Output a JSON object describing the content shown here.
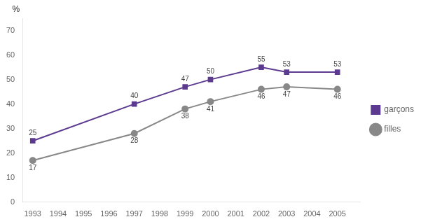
{
  "chart_data": {
    "type": "line",
    "x": [
      1993,
      1997,
      1999,
      2000,
      2002,
      2003,
      2005
    ],
    "series": [
      {
        "name": "garçons",
        "color": "#5b3a8f",
        "marker": "square",
        "values": [
          25,
          40,
          47,
          50,
          55,
          53,
          53
        ]
      },
      {
        "name": "filles",
        "color": "#888888",
        "marker": "circle",
        "values": [
          17,
          28,
          38,
          41,
          46,
          47,
          46
        ]
      }
    ],
    "ylabel": "%",
    "xlim": [
      1992.6,
      2005.9
    ],
    "xticks": [
      1993,
      1994,
      1995,
      1996,
      1997,
      1998,
      1999,
      2000,
      2001,
      2002,
      2003,
      2004,
      2005
    ],
    "ylim": [
      0,
      75
    ],
    "yticks": [
      0,
      10,
      20,
      30,
      40,
      50,
      60,
      70
    ],
    "grid": false,
    "legend": "right",
    "data_labels": true
  }
}
